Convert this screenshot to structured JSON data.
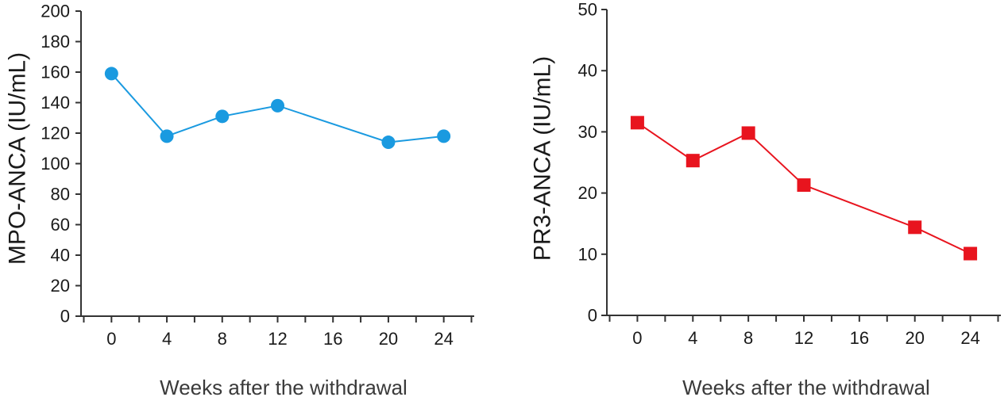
{
  "chart_data": [
    {
      "type": "line",
      "title": "",
      "ylabel": "MPO-ANCA (IU/mL)",
      "xlabel": "Weeks after the withdrawal",
      "xlim": [
        -2.2,
        26.2
      ],
      "ylim": [
        0,
        200
      ],
      "xticks": [
        0,
        4,
        8,
        12,
        16,
        20,
        24
      ],
      "yticks": [
        0,
        20,
        40,
        60,
        80,
        100,
        120,
        140,
        160,
        180,
        200
      ],
      "marker": "circle",
      "color": "#1a9ae0",
      "series": [
        {
          "name": "MPO-ANCA",
          "x": [
            0,
            4,
            8,
            12,
            20,
            24
          ],
          "values": [
            159,
            118,
            131,
            138,
            114,
            118
          ]
        }
      ]
    },
    {
      "type": "line",
      "title": "",
      "ylabel": "PR3-ANCA (IU/mL)",
      "xlabel": "Weeks after the withdrawal",
      "xlim": [
        -2.2,
        26.2
      ],
      "ylim": [
        0,
        50
      ],
      "xticks": [
        0,
        4,
        8,
        12,
        16,
        20,
        24
      ],
      "yticks": [
        0,
        10,
        20,
        30,
        40,
        50
      ],
      "marker": "square",
      "color": "#e8141e",
      "series": [
        {
          "name": "PR3-ANCA",
          "x": [
            0,
            4,
            8,
            12,
            20,
            24
          ],
          "values": [
            31.5,
            25.3,
            29.8,
            21.3,
            14.4,
            10.1
          ]
        }
      ]
    }
  ]
}
